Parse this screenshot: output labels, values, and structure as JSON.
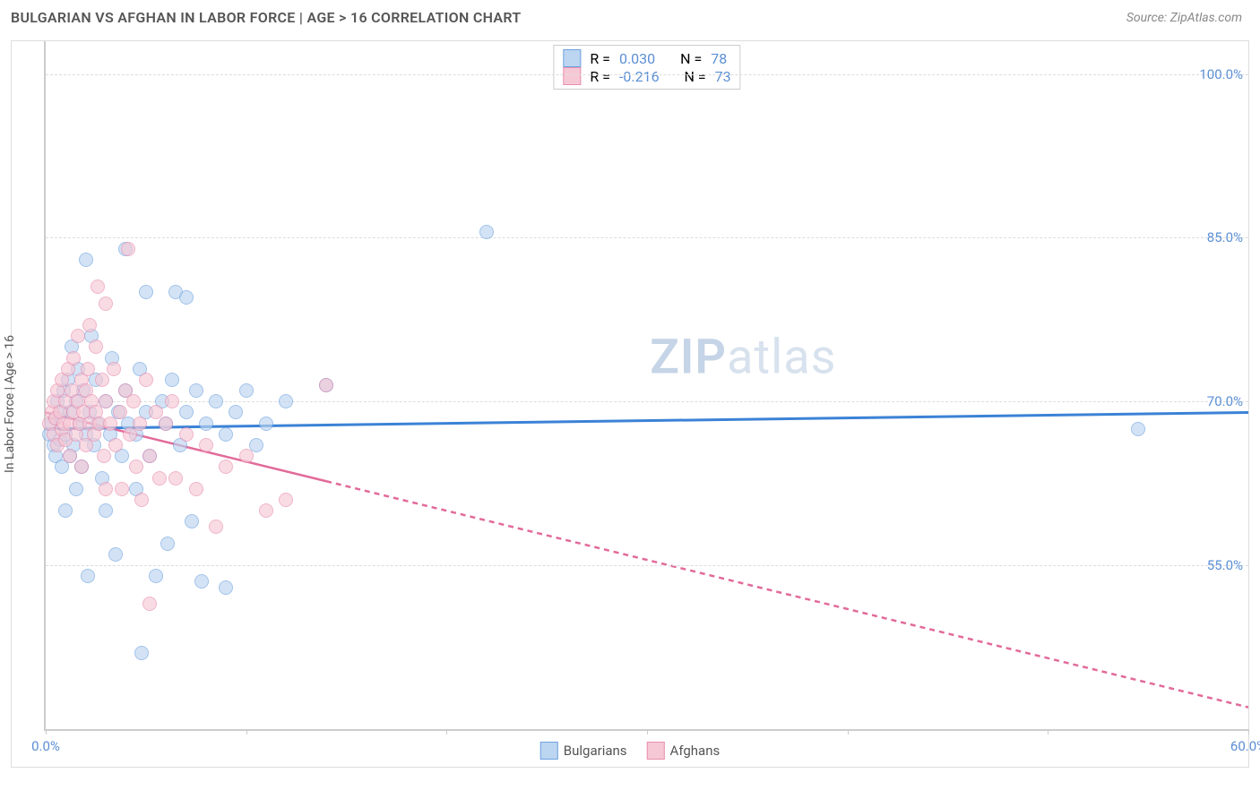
{
  "header": {
    "title": "BULGARIAN VS AFGHAN IN LABOR FORCE | AGE > 16 CORRELATION CHART",
    "source": "Source: ZipAtlas.com"
  },
  "chart": {
    "type": "scatter",
    "ylabel": "In Labor Force | Age > 16",
    "xlim": [
      0,
      60
    ],
    "ylim": [
      40,
      103
    ],
    "y_gridlines": [
      55,
      70,
      85,
      100
    ],
    "y_tick_labels": [
      "55.0%",
      "70.0%",
      "85.0%",
      "100.0%"
    ],
    "x_ticks": [
      0,
      10,
      20,
      30,
      40,
      50,
      60
    ],
    "x_tick_labels": {
      "0": "0.0%",
      "60": "60.0%"
    },
    "background_color": "#ffffff",
    "grid_color": "#dddddd",
    "grid_dash": "4,4",
    "axis_color": "#cccccc",
    "tick_label_color": "#5b8fd6",
    "label_color": "#555555",
    "label_fontsize": 14,
    "tick_fontsize": 15,
    "point_radius": 8,
    "point_opacity": 0.65,
    "watermark": {
      "text_a": "ZIP",
      "text_b": "atlas"
    },
    "series": [
      {
        "name": "Bulgarians",
        "fill": "#bcd5f0",
        "stroke": "#6fa3e0",
        "trend_color": "#3b82d6",
        "trend_width": 3,
        "trend_dash": "none",
        "trend": {
          "x1": 0,
          "y1": 67.5,
          "x2": 60,
          "y2": 69.0,
          "data_xmax": 60
        },
        "r": "0.030",
        "n": "78",
        "points": [
          [
            0.2,
            67
          ],
          [
            0.3,
            68
          ],
          [
            0.4,
            66
          ],
          [
            0.5,
            68.5
          ],
          [
            0.5,
            65
          ],
          [
            0.6,
            70
          ],
          [
            0.7,
            66.5
          ],
          [
            0.8,
            69
          ],
          [
            0.8,
            64
          ],
          [
            0.9,
            71
          ],
          [
            1.0,
            67
          ],
          [
            1.0,
            60
          ],
          [
            1.1,
            72
          ],
          [
            1.2,
            65
          ],
          [
            1.2,
            69
          ],
          [
            1.3,
            75
          ],
          [
            1.4,
            66
          ],
          [
            1.5,
            62
          ],
          [
            1.5,
            70
          ],
          [
            1.6,
            73
          ],
          [
            1.7,
            68
          ],
          [
            1.8,
            64
          ],
          [
            1.9,
            71
          ],
          [
            2.0,
            67
          ],
          [
            2.0,
            83
          ],
          [
            2.1,
            54
          ],
          [
            2.2,
            69
          ],
          [
            2.3,
            76
          ],
          [
            2.4,
            66
          ],
          [
            2.5,
            72
          ],
          [
            2.6,
            68
          ],
          [
            2.8,
            63
          ],
          [
            3.0,
            70
          ],
          [
            3.0,
            60
          ],
          [
            3.2,
            67
          ],
          [
            3.3,
            74
          ],
          [
            3.5,
            56
          ],
          [
            3.6,
            69
          ],
          [
            3.8,
            65
          ],
          [
            4.0,
            71
          ],
          [
            4.0,
            84
          ],
          [
            4.1,
            68
          ],
          [
            4.5,
            67
          ],
          [
            4.5,
            62
          ],
          [
            4.7,
            73
          ],
          [
            4.8,
            47
          ],
          [
            5.0,
            69
          ],
          [
            5.0,
            80
          ],
          [
            5.2,
            65
          ],
          [
            5.5,
            54
          ],
          [
            5.8,
            70
          ],
          [
            6.0,
            68
          ],
          [
            6.1,
            57
          ],
          [
            6.3,
            72
          ],
          [
            6.5,
            80
          ],
          [
            6.7,
            66
          ],
          [
            7.0,
            69
          ],
          [
            7.0,
            79.5
          ],
          [
            7.3,
            59
          ],
          [
            7.5,
            71
          ],
          [
            7.8,
            53.5
          ],
          [
            8.0,
            68
          ],
          [
            8.5,
            70
          ],
          [
            9.0,
            67
          ],
          [
            9.0,
            53
          ],
          [
            9.5,
            69
          ],
          [
            10.0,
            71
          ],
          [
            10.5,
            66
          ],
          [
            11.0,
            68
          ],
          [
            12.0,
            70
          ],
          [
            14.0,
            71.5
          ],
          [
            22.0,
            85.5
          ],
          [
            54.5,
            67.5
          ]
        ]
      },
      {
        "name": "Afghans",
        "fill": "#f6c8d5",
        "stroke": "#e88fb0",
        "trend_color": "#e26a9a",
        "trend_width": 2.5,
        "trend_dash": "6,5",
        "trend": {
          "x1": 0,
          "y1": 69.0,
          "x2": 60,
          "y2": 42.0,
          "data_xmax": 14
        },
        "r": "-0.216",
        "n": "73",
        "points": [
          [
            0.2,
            68
          ],
          [
            0.3,
            69
          ],
          [
            0.4,
            67
          ],
          [
            0.4,
            70
          ],
          [
            0.5,
            68.5
          ],
          [
            0.6,
            66
          ],
          [
            0.6,
            71
          ],
          [
            0.7,
            69
          ],
          [
            0.8,
            67.5
          ],
          [
            0.8,
            72
          ],
          [
            0.9,
            68
          ],
          [
            1.0,
            70
          ],
          [
            1.0,
            66.5
          ],
          [
            1.1,
            73
          ],
          [
            1.2,
            68
          ],
          [
            1.2,
            65
          ],
          [
            1.3,
            71
          ],
          [
            1.4,
            69
          ],
          [
            1.4,
            74
          ],
          [
            1.5,
            67
          ],
          [
            1.6,
            70
          ],
          [
            1.6,
            76
          ],
          [
            1.7,
            68
          ],
          [
            1.8,
            72
          ],
          [
            1.8,
            64
          ],
          [
            1.9,
            69
          ],
          [
            2.0,
            71
          ],
          [
            2.0,
            66
          ],
          [
            2.1,
            73
          ],
          [
            2.2,
            68
          ],
          [
            2.2,
            77
          ],
          [
            2.3,
            70
          ],
          [
            2.4,
            67
          ],
          [
            2.5,
            75
          ],
          [
            2.5,
            69
          ],
          [
            2.6,
            80.5
          ],
          [
            2.7,
            68
          ],
          [
            2.8,
            72
          ],
          [
            2.9,
            65
          ],
          [
            3.0,
            70
          ],
          [
            3.0,
            79
          ],
          [
            3.0,
            62
          ],
          [
            3.2,
            68
          ],
          [
            3.4,
            73
          ],
          [
            3.5,
            66
          ],
          [
            3.7,
            69
          ],
          [
            3.8,
            62
          ],
          [
            4.0,
            71
          ],
          [
            4.1,
            84
          ],
          [
            4.2,
            67
          ],
          [
            4.4,
            70
          ],
          [
            4.5,
            64
          ],
          [
            4.7,
            68
          ],
          [
            4.8,
            61
          ],
          [
            5.0,
            72
          ],
          [
            5.2,
            65
          ],
          [
            5.2,
            51.5
          ],
          [
            5.5,
            69
          ],
          [
            5.7,
            63
          ],
          [
            6.0,
            68
          ],
          [
            6.3,
            70
          ],
          [
            6.5,
            63
          ],
          [
            7.0,
            67
          ],
          [
            7.5,
            62
          ],
          [
            8.0,
            66
          ],
          [
            8.5,
            58.5
          ],
          [
            9.0,
            64
          ],
          [
            10.0,
            65
          ],
          [
            11.0,
            60
          ],
          [
            12.0,
            61
          ],
          [
            14.0,
            71.5
          ]
        ]
      }
    ],
    "legend_top": {
      "r_label": "R =",
      "n_label": "N ="
    },
    "legend_bottom": [
      {
        "label": "Bulgarians",
        "fill": "#bcd5f0",
        "stroke": "#6fa3e0"
      },
      {
        "label": "Afghans",
        "fill": "#f6c8d5",
        "stroke": "#e88fb0"
      }
    ]
  }
}
